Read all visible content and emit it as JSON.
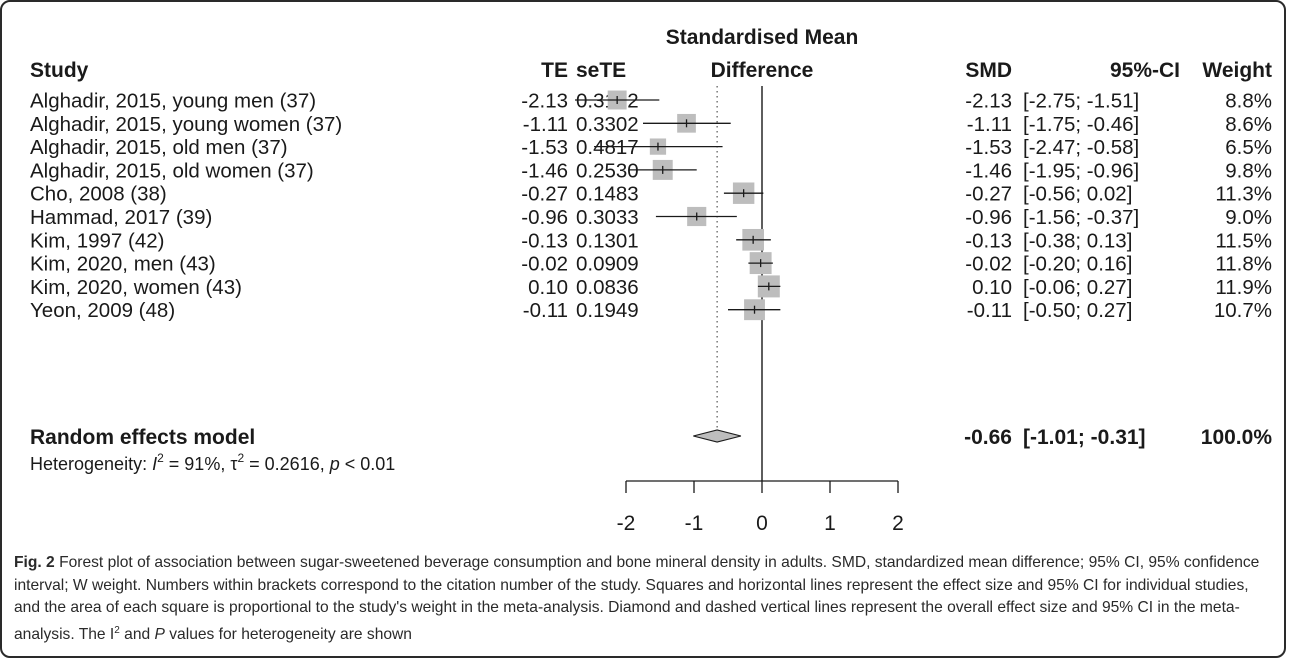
{
  "chart_data": {
    "type": "forest",
    "columns": {
      "study": "Study",
      "te": "TE",
      "sete": "seTE",
      "plot_header_line1": "Standardised Mean",
      "plot_header_line2": "Difference",
      "smd": "SMD",
      "ci": "95%-CI",
      "weight": "Weight"
    },
    "studies": [
      {
        "study": "Alghadir, 2015, young men (37)",
        "te": "-2.13",
        "sete": "0.3162",
        "smd": "-2.13",
        "ci": "[-2.75; -1.51]",
        "weight": "8.8%",
        "est": -2.13,
        "lo": -2.75,
        "hi": -1.51,
        "w": 8.8
      },
      {
        "study": "Alghadir, 2015, young women (37)",
        "te": "-1.11",
        "sete": "0.3302",
        "smd": "-1.11",
        "ci": "[-1.75; -0.46]",
        "weight": "8.6%",
        "est": -1.11,
        "lo": -1.75,
        "hi": -0.46,
        "w": 8.6
      },
      {
        "study": "Alghadir, 2015, old men (37)",
        "te": "-1.53",
        "sete": "0.4817",
        "smd": "-1.53",
        "ci": "[-2.47; -0.58]",
        "weight": "6.5%",
        "est": -1.53,
        "lo": -2.47,
        "hi": -0.58,
        "w": 6.5
      },
      {
        "study": "Alghadir, 2015, old women (37)",
        "te": "-1.46",
        "sete": "0.2530",
        "smd": "-1.46",
        "ci": "[-1.95; -0.96]",
        "weight": "9.8%",
        "est": -1.46,
        "lo": -1.95,
        "hi": -0.96,
        "w": 9.8
      },
      {
        "study": "Cho, 2008 (38)",
        "te": "-0.27",
        "sete": "0.1483",
        "smd": "-0.27",
        "ci": "[-0.56; 0.02]",
        "weight": "11.3%",
        "est": -0.27,
        "lo": -0.56,
        "hi": 0.02,
        "w": 11.3
      },
      {
        "study": "Hammad, 2017 (39)",
        "te": "-0.96",
        "sete": "0.3033",
        "smd": "-0.96",
        "ci": "[-1.56; -0.37]",
        "weight": "9.0%",
        "est": -0.96,
        "lo": -1.56,
        "hi": -0.37,
        "w": 9.0
      },
      {
        "study": "Kim, 1997 (42)",
        "te": "-0.13",
        "sete": "0.1301",
        "smd": "-0.13",
        "ci": "[-0.38; 0.13]",
        "weight": "11.5%",
        "est": -0.13,
        "lo": -0.38,
        "hi": 0.13,
        "w": 11.5
      },
      {
        "study": "Kim, 2020, men (43)",
        "te": "-0.02",
        "sete": "0.0909",
        "smd": "-0.02",
        "ci": "[-0.20; 0.16]",
        "weight": "11.8%",
        "est": -0.02,
        "lo": -0.2,
        "hi": 0.16,
        "w": 11.8
      },
      {
        "study": "Kim, 2020, women (43)",
        "te": "0.10",
        "sete": "0.0836",
        "smd": "0.10",
        "ci": "[-0.06; 0.27]",
        "weight": "11.9%",
        "est": 0.1,
        "lo": -0.06,
        "hi": 0.27,
        "w": 11.9
      },
      {
        "study": "Yeon, 2009 (48)",
        "te": "-0.11",
        "sete": "0.1949",
        "smd": "-0.11",
        "ci": "[-0.50; 0.27]",
        "weight": "10.7%",
        "est": -0.11,
        "lo": -0.5,
        "hi": 0.27,
        "w": 10.7
      }
    ],
    "pooled": {
      "label": "Random effects model",
      "smd": "-0.66",
      "ci": "[-1.01; -0.31]",
      "weight": "100.0%",
      "est": -0.66,
      "lo": -1.01,
      "hi": -0.31
    },
    "heterogeneity": {
      "prefix": "Heterogeneity: ",
      "i_symbol": "I",
      "i_exp": "2",
      "i_value": " = 91%, ",
      "tau_symbol": "τ",
      "tau_exp": "2",
      "tau_value": " = 0.2616, ",
      "p_symbol": "p",
      "p_value": " < 0.01"
    },
    "x_ticks": [
      -2,
      -1,
      0,
      1,
      2
    ],
    "xlim": [
      -2,
      2
    ],
    "null_line": 0,
    "box_color": "#bdbdbd",
    "line_color": "#1a1a1a"
  },
  "caption": {
    "label": "Fig. 2",
    "text_before_i": " Forest plot of association between sugar-sweetened beverage consumption and bone mineral density in adults. SMD, standardized mean difference; 95% CI, 95% confidence interval; W weight. Numbers within brackets correspond to the citation number of the study. Squares and horizontal lines represent the effect size and 95% CI for individual studies, and the area of each square is proportional to the study's weight in the meta-analysis. Diamond and dashed vertical lines represent the overall effect size and 95% CI in the meta-analysis. The I",
    "i_exp": "2",
    "text_mid": " and ",
    "p_symbol": "P",
    "text_end": " values for heterogeneity are shown"
  }
}
